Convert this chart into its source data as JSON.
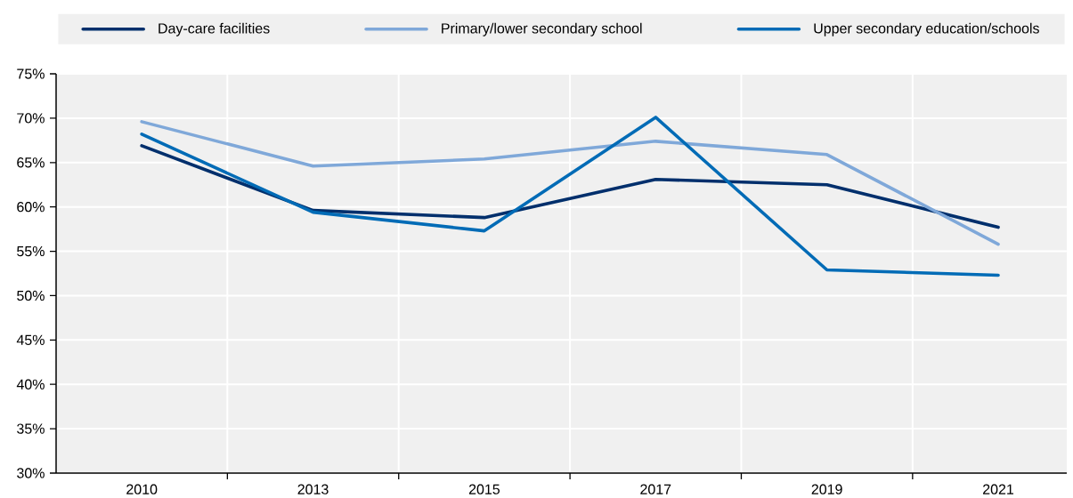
{
  "chart_data": {
    "type": "line",
    "categories": [
      "2010",
      "2013",
      "2015",
      "2017",
      "2019",
      "2021"
    ],
    "series": [
      {
        "name": "Day-care facilities",
        "color": "#002f6c",
        "values": [
          66.9,
          59.6,
          58.8,
          63.1,
          62.5,
          57.7
        ]
      },
      {
        "name": "Primary/lower secondary school",
        "color": "#7fa8d9",
        "values": [
          69.6,
          64.6,
          65.4,
          67.4,
          65.9,
          55.8
        ]
      },
      {
        "name": "Upper secondary education/schools",
        "color": "#006bb6",
        "values": [
          68.2,
          59.4,
          57.3,
          70.1,
          52.9,
          52.3
        ]
      }
    ],
    "ylim": [
      30,
      75
    ],
    "yticks": [
      {
        "value": 30,
        "label": "30%"
      },
      {
        "value": 35,
        "label": "35%"
      },
      {
        "value": 40,
        "label": "40%"
      },
      {
        "value": 45,
        "label": "45%"
      },
      {
        "value": 50,
        "label": "50%"
      },
      {
        "value": 55,
        "label": "55%"
      },
      {
        "value": 60,
        "label": "60%"
      },
      {
        "value": 65,
        "label": "65%"
      },
      {
        "value": 70,
        "label": "70%"
      },
      {
        "value": 75,
        "label": "75%"
      }
    ],
    "grid": true,
    "legend": "top",
    "line_style": "solid"
  }
}
